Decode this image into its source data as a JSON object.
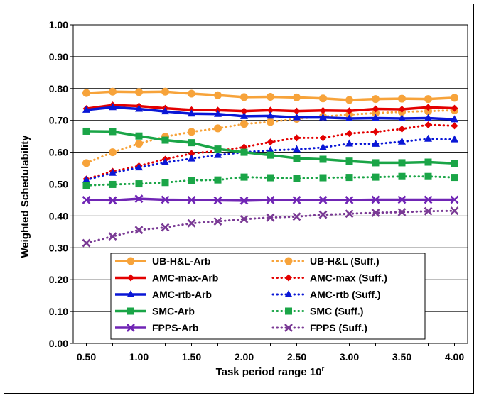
{
  "chart_data": {
    "type": "line",
    "xlabel": "Task period range 10",
    "xlabel_sup": "r",
    "ylabel": "Weighted Schedulability",
    "ylim": [
      0,
      1
    ],
    "yticks": [
      "0.00",
      "0.10",
      "0.20",
      "0.30",
      "0.40",
      "0.50",
      "0.60",
      "0.70",
      "0.80",
      "0.90",
      "1.00"
    ],
    "xlim": [
      0.375,
      4.125
    ],
    "xticks": [
      "0.50",
      "1.00",
      "1.50",
      "2.00",
      "2.50",
      "3.00",
      "3.50",
      "4.00"
    ],
    "x": [
      0.5,
      0.75,
      1.0,
      1.25,
      1.5,
      1.75,
      2.0,
      2.25,
      2.5,
      2.75,
      3.0,
      3.25,
      3.5,
      3.75,
      4.0
    ],
    "grid": "horizontal",
    "legend_position": "bottom-center",
    "series": [
      {
        "name": "UB-H&L-Arb",
        "color": "#f7a33a",
        "style": "solid",
        "marker": "circle",
        "values": [
          0.786,
          0.79,
          0.789,
          0.79,
          0.784,
          0.779,
          0.773,
          0.774,
          0.772,
          0.769,
          0.764,
          0.767,
          0.768,
          0.767,
          0.771
        ]
      },
      {
        "name": "UB-H&L (Suff.)",
        "color": "#f7a33a",
        "style": "dotted",
        "marker": "circle",
        "values": [
          0.566,
          0.6,
          0.627,
          0.649,
          0.664,
          0.675,
          0.689,
          0.695,
          0.705,
          0.712,
          0.718,
          0.723,
          0.727,
          0.729,
          0.732
        ]
      },
      {
        "name": "AMC-max-Arb",
        "color": "#e30000",
        "style": "solid",
        "marker": "diamond",
        "values": [
          0.737,
          0.748,
          0.745,
          0.738,
          0.733,
          0.732,
          0.729,
          0.732,
          0.729,
          0.731,
          0.73,
          0.736,
          0.735,
          0.741,
          0.738
        ]
      },
      {
        "name": "AMC-max (Suff.)",
        "color": "#e30000",
        "style": "dotted",
        "marker": "diamond",
        "values": [
          0.516,
          0.54,
          0.557,
          0.578,
          0.596,
          0.604,
          0.616,
          0.632,
          0.645,
          0.645,
          0.659,
          0.664,
          0.673,
          0.686,
          0.683
        ]
      },
      {
        "name": "AMC-rtb-Arb",
        "color": "#0a17d6",
        "style": "solid",
        "marker": "triangle",
        "values": [
          0.733,
          0.741,
          0.736,
          0.728,
          0.721,
          0.72,
          0.713,
          0.714,
          0.709,
          0.709,
          0.706,
          0.707,
          0.706,
          0.707,
          0.703
        ]
      },
      {
        "name": "AMC-rtb (Suff.)",
        "color": "#0a17d6",
        "style": "dotted",
        "marker": "triangle",
        "values": [
          0.513,
          0.535,
          0.552,
          0.568,
          0.58,
          0.591,
          0.6,
          0.606,
          0.609,
          0.615,
          0.627,
          0.626,
          0.633,
          0.642,
          0.64
        ]
      },
      {
        "name": "SMC-Arb",
        "color": "#1aa547",
        "style": "solid",
        "marker": "square",
        "values": [
          0.666,
          0.665,
          0.651,
          0.638,
          0.63,
          0.61,
          0.6,
          0.591,
          0.581,
          0.578,
          0.572,
          0.567,
          0.567,
          0.569,
          0.565
        ]
      },
      {
        "name": "SMC (Suff.)",
        "color": "#1aa547",
        "style": "dotted",
        "marker": "square",
        "values": [
          0.496,
          0.499,
          0.501,
          0.505,
          0.512,
          0.513,
          0.522,
          0.52,
          0.518,
          0.52,
          0.521,
          0.522,
          0.524,
          0.524,
          0.521
        ]
      },
      {
        "name": "FPPS-Arb",
        "color": "#7025b5",
        "style": "solid",
        "marker": "x",
        "values": [
          0.45,
          0.449,
          0.454,
          0.451,
          0.45,
          0.449,
          0.448,
          0.45,
          0.45,
          0.45,
          0.45,
          0.451,
          0.451,
          0.451,
          0.451
        ]
      },
      {
        "name": "FPPS (Suff.)",
        "color": "#7a3a95",
        "style": "dotted",
        "marker": "x",
        "values": [
          0.315,
          0.336,
          0.356,
          0.364,
          0.377,
          0.383,
          0.39,
          0.395,
          0.398,
          0.404,
          0.407,
          0.41,
          0.412,
          0.415,
          0.416
        ]
      }
    ]
  }
}
